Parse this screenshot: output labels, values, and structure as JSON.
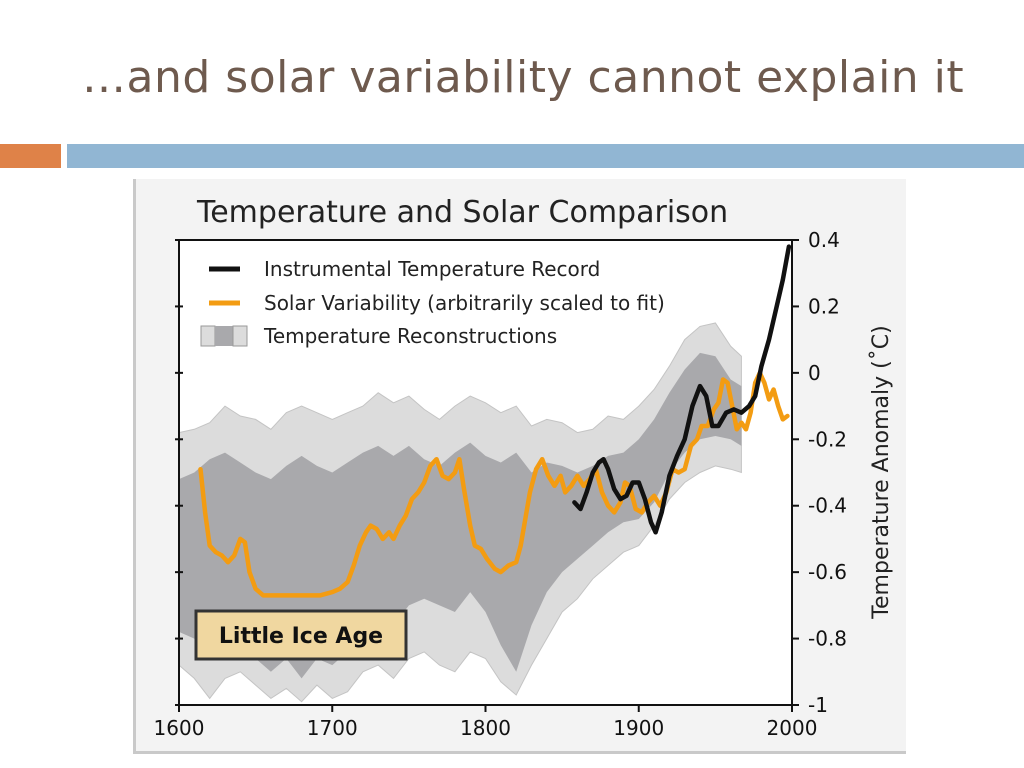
{
  "slide": {
    "title": "…and solar variability cannot explain it",
    "accent_colors": {
      "orange": "#df8248",
      "blue": "#91b6d3"
    }
  },
  "chart_data": {
    "type": "line",
    "title": "Temperature and Solar Comparison",
    "xlabel": "",
    "ylabel": "Temperature Anomaly (˚C)",
    "xlim": [
      1600,
      2000
    ],
    "ylim": [
      -1,
      0.4
    ],
    "x_ticks": [
      1600,
      1700,
      1800,
      1900,
      2000
    ],
    "y_ticks": [
      0.4,
      0.2,
      0,
      -0.2,
      -0.4,
      -0.6,
      -0.8,
      -1
    ],
    "y_tick_labels": [
      "0.4",
      "0.2",
      "0",
      "-0.2",
      "-0.4",
      "-0.6",
      "-0.8",
      "-1"
    ],
    "legend_position": "top-left",
    "legend": [
      {
        "label": "Instrumental Temperature Record",
        "color": "#111111",
        "kind": "line"
      },
      {
        "label": "Solar Variability (arbitrarily scaled to fit)",
        "color": "#f39c12",
        "kind": "line"
      },
      {
        "label": "Temperature Reconstructions",
        "color": "#9a9a9a",
        "kind": "band"
      }
    ],
    "annotation": {
      "text": "Little Ice Age",
      "x": 1680,
      "y": -0.77
    },
    "series": [
      {
        "name": "Instrumental Temperature Record",
        "color": "#111111",
        "points": [
          [
            1858,
            -0.39
          ],
          [
            1862,
            -0.41
          ],
          [
            1866,
            -0.36
          ],
          [
            1870,
            -0.3
          ],
          [
            1874,
            -0.27
          ],
          [
            1877,
            -0.26
          ],
          [
            1880,
            -0.29
          ],
          [
            1884,
            -0.35
          ],
          [
            1888,
            -0.38
          ],
          [
            1892,
            -0.37
          ],
          [
            1896,
            -0.33
          ],
          [
            1900,
            -0.33
          ],
          [
            1904,
            -0.38
          ],
          [
            1908,
            -0.45
          ],
          [
            1911,
            -0.48
          ],
          [
            1915,
            -0.42
          ],
          [
            1920,
            -0.31
          ],
          [
            1925,
            -0.25
          ],
          [
            1930,
            -0.2
          ],
          [
            1935,
            -0.1
          ],
          [
            1940,
            -0.04
          ],
          [
            1944,
            -0.07
          ],
          [
            1948,
            -0.16
          ],
          [
            1952,
            -0.16
          ],
          [
            1957,
            -0.12
          ],
          [
            1962,
            -0.11
          ],
          [
            1967,
            -0.12
          ],
          [
            1972,
            -0.1
          ],
          [
            1976,
            -0.07
          ],
          [
            1980,
            0.02
          ],
          [
            1985,
            0.1
          ],
          [
            1990,
            0.2
          ],
          [
            1994,
            0.28
          ],
          [
            1998,
            0.38
          ]
        ]
      },
      {
        "name": "Solar Variability (arbitrarily scaled to fit)",
        "color": "#f39c12",
        "points": [
          [
            1614,
            -0.29
          ],
          [
            1617,
            -0.42
          ],
          [
            1620,
            -0.52
          ],
          [
            1624,
            -0.54
          ],
          [
            1628,
            -0.55
          ],
          [
            1632,
            -0.57
          ],
          [
            1636,
            -0.55
          ],
          [
            1640,
            -0.5
          ],
          [
            1643,
            -0.51
          ],
          [
            1646,
            -0.6
          ],
          [
            1650,
            -0.65
          ],
          [
            1655,
            -0.67
          ],
          [
            1665,
            -0.67
          ],
          [
            1680,
            -0.67
          ],
          [
            1692,
            -0.67
          ],
          [
            1700,
            -0.66
          ],
          [
            1705,
            -0.65
          ],
          [
            1710,
            -0.63
          ],
          [
            1714,
            -0.58
          ],
          [
            1718,
            -0.52
          ],
          [
            1722,
            -0.48
          ],
          [
            1725,
            -0.46
          ],
          [
            1729,
            -0.47
          ],
          [
            1733,
            -0.5
          ],
          [
            1737,
            -0.48
          ],
          [
            1740,
            -0.5
          ],
          [
            1744,
            -0.46
          ],
          [
            1748,
            -0.43
          ],
          [
            1752,
            -0.38
          ],
          [
            1756,
            -0.36
          ],
          [
            1760,
            -0.33
          ],
          [
            1764,
            -0.28
          ],
          [
            1768,
            -0.26
          ],
          [
            1772,
            -0.31
          ],
          [
            1776,
            -0.32
          ],
          [
            1780,
            -0.3
          ],
          [
            1783,
            -0.26
          ],
          [
            1786,
            -0.35
          ],
          [
            1790,
            -0.46
          ],
          [
            1793,
            -0.52
          ],
          [
            1797,
            -0.53
          ],
          [
            1801,
            -0.56
          ],
          [
            1806,
            -0.59
          ],
          [
            1810,
            -0.6
          ],
          [
            1815,
            -0.58
          ],
          [
            1820,
            -0.57
          ],
          [
            1823,
            -0.52
          ],
          [
            1826,
            -0.44
          ],
          [
            1829,
            -0.36
          ],
          [
            1833,
            -0.29
          ],
          [
            1837,
            -0.26
          ],
          [
            1841,
            -0.31
          ],
          [
            1845,
            -0.34
          ],
          [
            1849,
            -0.31
          ],
          [
            1852,
            -0.36
          ],
          [
            1856,
            -0.34
          ],
          [
            1860,
            -0.31
          ],
          [
            1864,
            -0.34
          ],
          [
            1868,
            -0.32
          ],
          [
            1872,
            -0.29
          ],
          [
            1876,
            -0.36
          ],
          [
            1880,
            -0.4
          ],
          [
            1884,
            -0.42
          ],
          [
            1888,
            -0.39
          ],
          [
            1891,
            -0.33
          ],
          [
            1894,
            -0.34
          ],
          [
            1898,
            -0.41
          ],
          [
            1902,
            -0.42
          ],
          [
            1906,
            -0.39
          ],
          [
            1910,
            -0.37
          ],
          [
            1914,
            -0.4
          ],
          [
            1918,
            -0.36
          ],
          [
            1922,
            -0.29
          ],
          [
            1926,
            -0.3
          ],
          [
            1930,
            -0.29
          ],
          [
            1934,
            -0.22
          ],
          [
            1938,
            -0.2
          ],
          [
            1941,
            -0.16
          ],
          [
            1945,
            -0.16
          ],
          [
            1949,
            -0.11
          ],
          [
            1952,
            -0.09
          ],
          [
            1955,
            -0.02
          ],
          [
            1958,
            -0.03
          ],
          [
            1961,
            -0.1
          ],
          [
            1964,
            -0.17
          ],
          [
            1967,
            -0.15
          ],
          [
            1970,
            -0.17
          ],
          [
            1973,
            -0.12
          ],
          [
            1976,
            -0.03
          ],
          [
            1979,
            0.0
          ],
          [
            1982,
            -0.03
          ],
          [
            1985,
            -0.08
          ],
          [
            1988,
            -0.05
          ],
          [
            1991,
            -0.1
          ],
          [
            1994,
            -0.14
          ],
          [
            1997,
            -0.13
          ]
        ]
      }
    ],
    "bands": [
      {
        "name": "Temperature Reconstructions (outer range)",
        "color": "#dcdcdc",
        "x": [
          1600,
          1610,
          1620,
          1630,
          1640,
          1650,
          1660,
          1670,
          1680,
          1690,
          1700,
          1710,
          1720,
          1730,
          1740,
          1750,
          1760,
          1770,
          1780,
          1790,
          1800,
          1810,
          1820,
          1830,
          1840,
          1850,
          1860,
          1870,
          1880,
          1890,
          1900,
          1910,
          1920,
          1930,
          1940,
          1950,
          1960,
          1967
        ],
        "upper": [
          -0.18,
          -0.17,
          -0.15,
          -0.1,
          -0.13,
          -0.14,
          -0.17,
          -0.12,
          -0.1,
          -0.12,
          -0.14,
          -0.12,
          -0.1,
          -0.06,
          -0.09,
          -0.07,
          -0.11,
          -0.14,
          -0.1,
          -0.07,
          -0.09,
          -0.12,
          -0.1,
          -0.16,
          -0.14,
          -0.15,
          -0.18,
          -0.17,
          -0.13,
          -0.14,
          -0.1,
          -0.05,
          0.02,
          0.1,
          0.14,
          0.15,
          0.08,
          0.05
        ],
        "lower": [
          -0.88,
          -0.92,
          -0.98,
          -0.92,
          -0.9,
          -0.94,
          -0.98,
          -0.95,
          -0.99,
          -0.94,
          -0.98,
          -0.96,
          -0.9,
          -0.88,
          -0.92,
          -0.86,
          -0.84,
          -0.88,
          -0.9,
          -0.84,
          -0.86,
          -0.93,
          -0.97,
          -0.88,
          -0.8,
          -0.72,
          -0.68,
          -0.62,
          -0.58,
          -0.54,
          -0.52,
          -0.46,
          -0.38,
          -0.33,
          -0.3,
          -0.28,
          -0.29,
          -0.3
        ]
      },
      {
        "name": "Temperature Reconstructions (inner range)",
        "color": "#a9a9ac",
        "x": [
          1600,
          1610,
          1620,
          1630,
          1640,
          1650,
          1660,
          1670,
          1680,
          1690,
          1700,
          1710,
          1720,
          1730,
          1740,
          1750,
          1760,
          1770,
          1780,
          1790,
          1800,
          1810,
          1820,
          1830,
          1840,
          1850,
          1860,
          1870,
          1880,
          1890,
          1900,
          1910,
          1920,
          1930,
          1940,
          1950,
          1960,
          1967
        ],
        "upper": [
          -0.32,
          -0.3,
          -0.26,
          -0.24,
          -0.27,
          -0.3,
          -0.32,
          -0.28,
          -0.25,
          -0.28,
          -0.3,
          -0.27,
          -0.24,
          -0.22,
          -0.25,
          -0.22,
          -0.26,
          -0.28,
          -0.24,
          -0.21,
          -0.25,
          -0.27,
          -0.24,
          -0.3,
          -0.27,
          -0.28,
          -0.3,
          -0.28,
          -0.25,
          -0.24,
          -0.2,
          -0.14,
          -0.06,
          0.01,
          0.06,
          0.05,
          -0.02,
          -0.04
        ],
        "lower": [
          -0.78,
          -0.8,
          -0.86,
          -0.83,
          -0.8,
          -0.86,
          -0.9,
          -0.86,
          -0.92,
          -0.86,
          -0.88,
          -0.84,
          -0.77,
          -0.74,
          -0.76,
          -0.7,
          -0.68,
          -0.7,
          -0.72,
          -0.66,
          -0.72,
          -0.82,
          -0.9,
          -0.76,
          -0.66,
          -0.6,
          -0.56,
          -0.52,
          -0.48,
          -0.45,
          -0.44,
          -0.39,
          -0.3,
          -0.24,
          -0.2,
          -0.19,
          -0.2,
          -0.22
        ]
      }
    ]
  }
}
